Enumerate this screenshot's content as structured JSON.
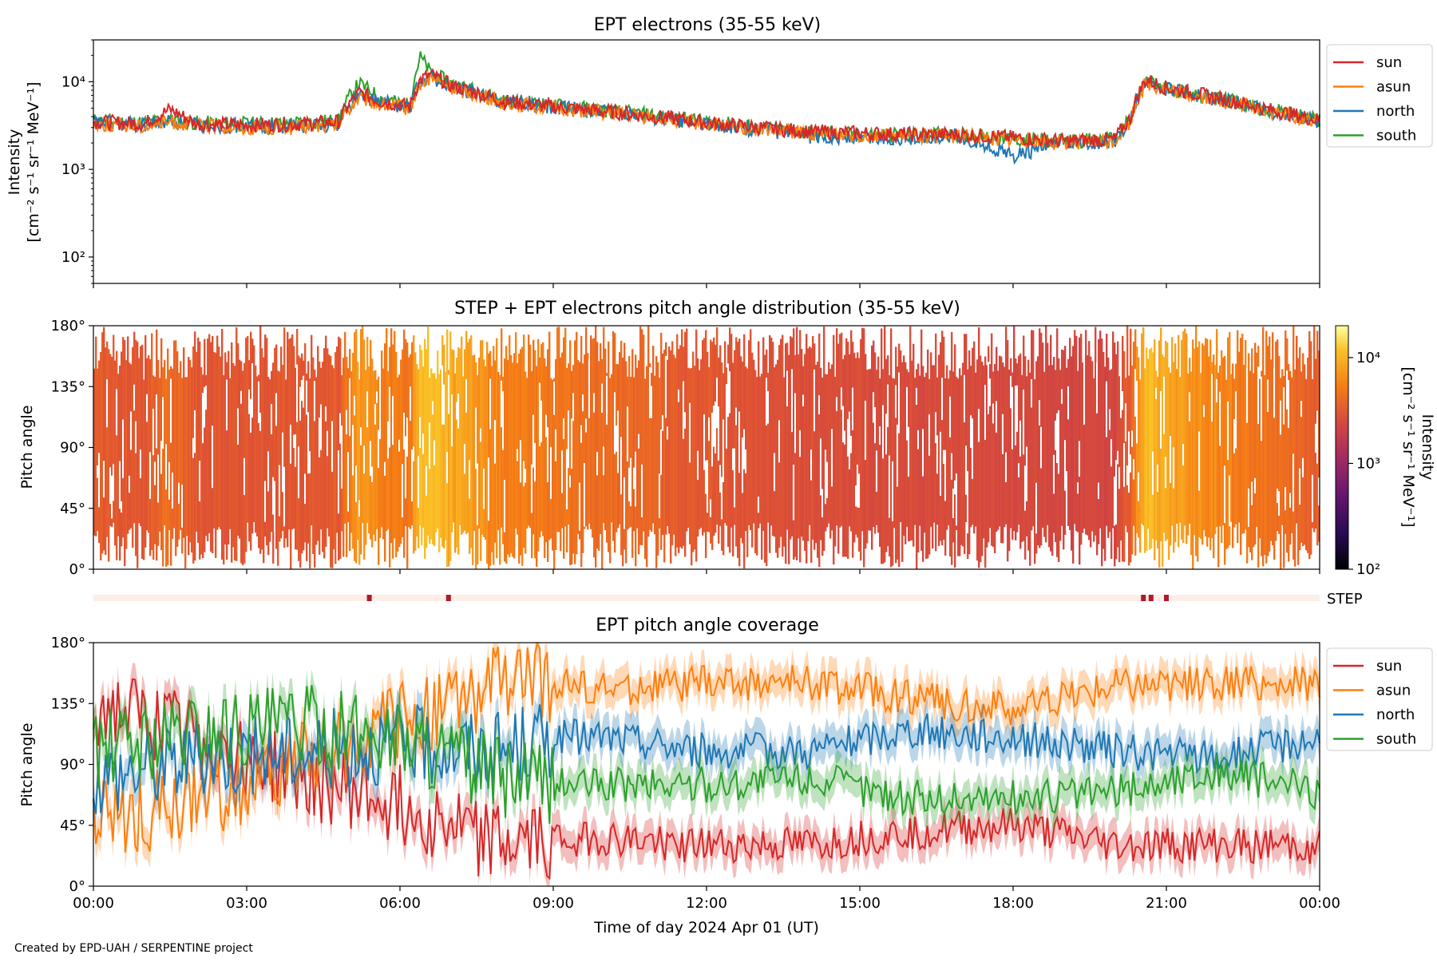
{
  "figure": {
    "footer": "Created by EPD-UAH / SERPENTINE project",
    "xlabel": "Time of day 2024 Apr 01 (UT)"
  },
  "colors": {
    "sun": "#d62728",
    "asun": "#ff7f0e",
    "north": "#1f77b4",
    "south": "#2ca02c",
    "step_bar": "#fdeee8",
    "step_mark": "#b2182b"
  },
  "chart_data": [
    {
      "id": "intensity",
      "type": "line",
      "title": "EPT electrons (35-55 keV)",
      "ylabel_line1": "Intensity",
      "ylabel_line2": "[cm⁻² s⁻¹ sr⁻¹ MeV⁻¹]",
      "y_scale": "log",
      "ylim": [
        50,
        30000
      ],
      "y_ticks": [
        {
          "value": 100,
          "label": "10²"
        },
        {
          "value": 1000,
          "label": "10³"
        },
        {
          "value": 10000,
          "label": "10⁴"
        }
      ],
      "x_unit": "hours since 00:00 UT",
      "xlim": [
        0,
        24
      ],
      "legend_position": "upper right outside",
      "x": [
        0,
        1,
        1.5,
        2,
        3,
        4,
        4.8,
        5.2,
        5.6,
        6.2,
        6.4,
        6.6,
        7,
        8,
        9,
        10,
        11,
        12,
        13,
        14,
        15,
        16,
        17,
        18,
        19,
        20,
        20.3,
        20.6,
        21,
        22,
        23,
        24
      ],
      "series": [
        {
          "name": "sun",
          "values": [
            3500,
            3300,
            4800,
            3300,
            3200,
            3300,
            3500,
            7500,
            6000,
            5200,
            10500,
            12000,
            9000,
            6000,
            5200,
            4600,
            4000,
            3400,
            3000,
            2700,
            2600,
            2500,
            2500,
            2300,
            2100,
            2200,
            3800,
            10500,
            8500,
            6500,
            4800,
            3600
          ]
        },
        {
          "name": "asun",
          "values": [
            3300,
            3100,
            3500,
            3200,
            3000,
            3000,
            3200,
            6500,
            5500,
            5000,
            9500,
            11000,
            8500,
            5800,
            5000,
            4500,
            3900,
            3300,
            2900,
            2600,
            2500,
            2400,
            2400,
            2200,
            2000,
            2100,
            3500,
            9500,
            8000,
            6200,
            4600,
            3500
          ]
        },
        {
          "name": "north",
          "values": [
            3400,
            3200,
            3600,
            3200,
            3100,
            3100,
            3300,
            7000,
            5800,
            5100,
            10000,
            11500,
            8700,
            5900,
            5100,
            4500,
            3900,
            3300,
            2800,
            2400,
            2300,
            2300,
            2300,
            1400,
            2000,
            2100,
            3400,
            9800,
            8200,
            6300,
            4700,
            3500
          ]
        },
        {
          "name": "south",
          "values": [
            3600,
            3400,
            3700,
            3400,
            3300,
            3400,
            3600,
            9500,
            6500,
            5300,
            19000,
            12500,
            9500,
            6200,
            5400,
            4700,
            4100,
            3500,
            3000,
            2600,
            2500,
            2500,
            2500,
            2200,
            2100,
            2200,
            3700,
            10000,
            8400,
            6400,
            4800,
            3600
          ]
        }
      ]
    },
    {
      "id": "pad",
      "type": "heatmap",
      "title": "STEP + EPT electrons pitch angle distribution (35-55 keV)",
      "ylabel": "Pitch angle",
      "ylim": [
        0,
        180
      ],
      "y_ticks": [
        "0°",
        "45°",
        "90°",
        "135°",
        "180°"
      ],
      "colorbar_label_line1": "Intensity",
      "colorbar_label_line2": "[cm⁻² s⁻¹ sr⁻¹ MeV⁻¹]",
      "colorbar_scale": "log",
      "colorbar_range": [
        100,
        20000
      ],
      "colorbar_ticks": [
        {
          "value": 100,
          "label": "10²"
        },
        {
          "value": 1000,
          "label": "10³"
        },
        {
          "value": 10000,
          "label": "10⁴"
        }
      ],
      "colormap": "inferno-like"
    },
    {
      "id": "step",
      "type": "bar",
      "label": "STEP",
      "marks_hours": [
        5.4,
        6.95,
        20.55,
        20.7,
        21.0
      ]
    },
    {
      "id": "coverage",
      "type": "line",
      "title": "EPT pitch angle coverage",
      "ylabel": "Pitch angle",
      "ylim": [
        0,
        180
      ],
      "y_ticks": [
        "0°",
        "45°",
        "90°",
        "135°",
        "180°"
      ],
      "x_ticks": [
        "00:00",
        "03:00",
        "06:00",
        "09:00",
        "12:00",
        "15:00",
        "18:00",
        "21:00",
        "00:00"
      ],
      "legend_position": "upper right outside",
      "x": [
        0,
        2,
        4,
        6,
        8,
        9,
        10,
        12,
        14,
        16,
        18,
        20,
        22,
        24
      ],
      "series": [
        {
          "name": "sun",
          "values": [
            135,
            110,
            80,
            60,
            30,
            35,
            35,
            30,
            30,
            40,
            45,
            30,
            30,
            30
          ]
        },
        {
          "name": "asun",
          "values": [
            50,
            60,
            90,
            120,
            150,
            150,
            145,
            150,
            150,
            140,
            130,
            150,
            150,
            150
          ]
        },
        {
          "name": "north",
          "values": [
            80,
            95,
            100,
            105,
            100,
            110,
            110,
            100,
            100,
            115,
            110,
            100,
            95,
            110
          ]
        },
        {
          "name": "south",
          "values": [
            100,
            115,
            120,
            110,
            80,
            75,
            75,
            75,
            80,
            65,
            65,
            70,
            85,
            70
          ]
        }
      ]
    }
  ]
}
